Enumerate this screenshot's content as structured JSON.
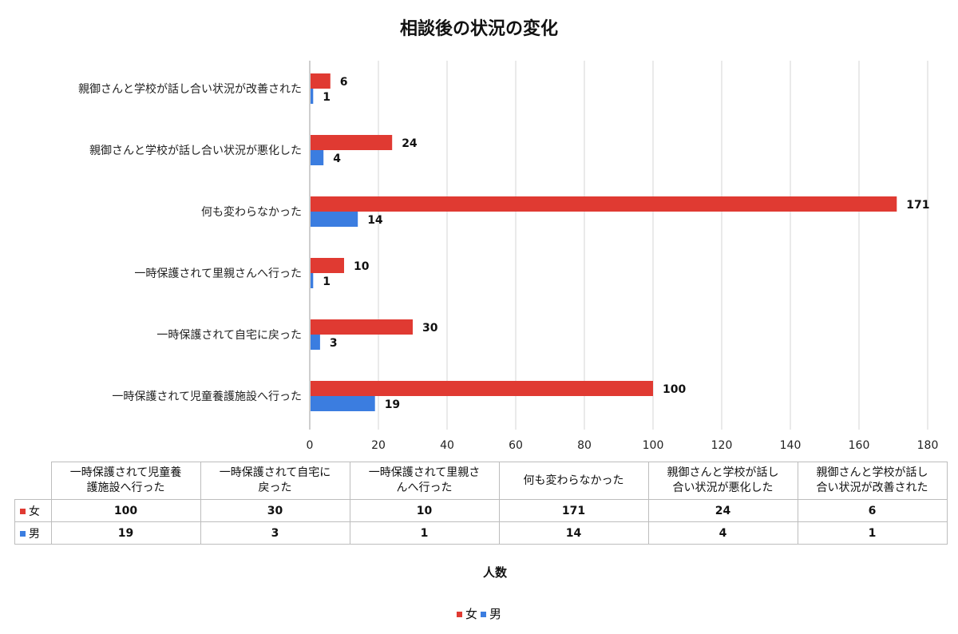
{
  "chart_data": {
    "type": "bar",
    "orientation": "horizontal",
    "title": "相談後の状況の変化",
    "categories": [
      "一時保護されて児童養護施設へ行った",
      "一時保護されて自宅に戻った",
      "一時保護されて里親さんへ行った",
      "何も変わらなかった",
      "親御さんと学校が話し合い状況が悪化した",
      "親御さんと学校が話し合い状況が改善された"
    ],
    "table_headers": [
      "一時保護されて児童養|護施設へ行った",
      "一時保護されて自宅に|戻った",
      "一時保護されて里親さ|んへ行った",
      "何も変わらなかった",
      "親御さんと学校が話し|合い状況が悪化した",
      "親御さんと学校が話し|合い状況が改善された"
    ],
    "series": [
      {
        "name": "女",
        "color": "#e03a32",
        "values": [
          100,
          30,
          10,
          171,
          24,
          6
        ]
      },
      {
        "name": "男",
        "color": "#3b7de0",
        "values": [
          19,
          3,
          1,
          14,
          4,
          1
        ]
      }
    ],
    "xlim": [
      0,
      180
    ],
    "xticks": [
      0,
      20,
      40,
      60,
      80,
      100,
      120,
      140,
      160,
      180
    ],
    "xlabel": "人数",
    "grid": "vertical",
    "legend": "bottom"
  }
}
